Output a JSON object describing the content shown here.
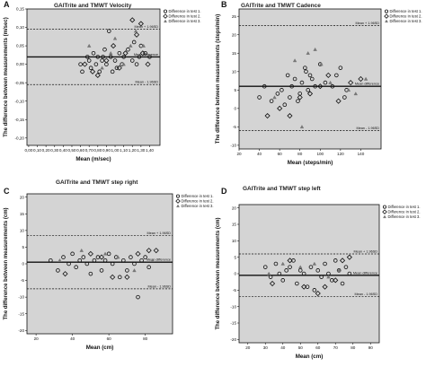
{
  "chart_data": [
    {
      "panel": "A",
      "type": "scatter",
      "title": "GAITrite and TMWT Velocity",
      "xlabel": "Mean (m/sec)",
      "ylabel": "The difference between measurements (m/sec)",
      "xlim": [
        -0.02,
        1.52
      ],
      "ylim": [
        -0.22,
        0.15
      ],
      "xticks": [
        "0,00",
        "0,10",
        "0,20",
        "0,30",
        "0,40",
        "0,50",
        "0,60",
        "0,70",
        "0,80",
        "0,90",
        "1,00",
        "1,10",
        "1,20",
        "1,30",
        "1,40"
      ],
      "xtick_values": [
        0,
        0.1,
        0.2,
        0.3,
        0.4,
        0.5,
        0.6,
        0.7,
        0.8,
        0.9,
        1.0,
        1.1,
        1.2,
        1.3,
        1.4
      ],
      "yticks": [
        "-0,20",
        "-0,15",
        "-0,10",
        "-0,05",
        "0,00",
        "0,05",
        "0,10",
        "0,15"
      ],
      "ytick_values": [
        -0.2,
        -0.15,
        -0.1,
        -0.05,
        0,
        0.05,
        0.1,
        0.15
      ],
      "legend": [
        "Difference in test 1.",
        "Difference in test 2.",
        "Difference in test 3."
      ],
      "legend_placement": "top-right",
      "ref_lines": [
        {
          "y": 0.095,
          "style": "dashed",
          "label": "Mean + 1.96SD"
        },
        {
          "y": 0.02,
          "style": "solid",
          "label": "Mean difference"
        },
        {
          "y": -0.055,
          "style": "dashed",
          "label": "Mean - 1.96SD"
        }
      ],
      "series": [
        {
          "name": "Difference in test 1.",
          "marker": "circle",
          "points": [
            [
              0.6,
              0.0
            ],
            [
              0.62,
              -0.02
            ],
            [
              0.68,
              0.02
            ],
            [
              0.7,
              0.01
            ],
            [
              0.72,
              -0.01
            ],
            [
              0.75,
              0.03
            ],
            [
              0.78,
              0.0
            ],
            [
              0.8,
              0.02
            ],
            [
              0.82,
              -0.02
            ],
            [
              0.85,
              0.01
            ],
            [
              0.88,
              0.04
            ],
            [
              0.9,
              0.0
            ],
            [
              0.93,
              0.09
            ],
            [
              0.95,
              0.02
            ],
            [
              1.0,
              0.01
            ],
            [
              1.02,
              -0.01
            ],
            [
              1.05,
              0.03
            ],
            [
              1.08,
              0.0
            ],
            [
              1.1,
              0.02
            ],
            [
              1.15,
              0.04
            ],
            [
              1.2,
              0.01
            ],
            [
              1.22,
              0.06
            ],
            [
              1.25,
              0.0
            ],
            [
              1.28,
              0.02
            ],
            [
              1.3,
              0.05
            ],
            [
              1.35,
              0.03
            ],
            [
              1.4,
              0.02
            ],
            [
              0.86,
              0.02
            ],
            [
              0.97,
              -0.02
            ]
          ]
        },
        {
          "name": "Difference in test 2.",
          "marker": "diamond",
          "points": [
            [
              0.65,
              0.0
            ],
            [
              0.74,
              -0.02
            ],
            [
              0.8,
              -0.03
            ],
            [
              0.9,
              0.01
            ],
            [
              0.98,
              0.05
            ],
            [
              1.05,
              -0.01
            ],
            [
              1.12,
              0.03
            ],
            [
              1.2,
              0.12
            ],
            [
              1.25,
              0.08
            ],
            [
              1.3,
              0.11
            ],
            [
              1.38,
              0.0
            ],
            [
              1.32,
              0.03
            ]
          ]
        },
        {
          "name": "Difference in test 3.",
          "marker": "triangle",
          "points": [
            [
              0.7,
              0.05
            ],
            [
              0.85,
              -0.01
            ],
            [
              0.95,
              0.03
            ],
            [
              1.0,
              0.07
            ],
            [
              1.1,
              0.0
            ],
            [
              1.18,
              0.05
            ],
            [
              1.24,
              0.09
            ],
            [
              1.33,
              0.05
            ]
          ]
        }
      ]
    },
    {
      "panel": "B",
      "type": "scatter",
      "title": "GAITrite and TMWT Cadence",
      "xlabel": "Mean (steps/min)",
      "ylabel": "The difference between measurements (steps/min)",
      "xlim": [
        20,
        160
      ],
      "ylim": [
        -11,
        27
      ],
      "xticks": [
        "20",
        "40",
        "60",
        "80",
        "100",
        "120",
        "140"
      ],
      "xtick_values": [
        20,
        40,
        60,
        80,
        100,
        120,
        140
      ],
      "yticks": [
        "-10",
        "-5",
        "0",
        "5",
        "10",
        "15",
        "20",
        "25"
      ],
      "ytick_values": [
        -10,
        -5,
        0,
        5,
        10,
        15,
        20,
        25
      ],
      "legend": [
        "Difference in test 1.",
        "Difference in test 2.",
        "Difference in test 3."
      ],
      "legend_placement": "top-right",
      "ref_lines": [
        {
          "y": 22.5,
          "style": "dashed",
          "label": "Mean + 1.96SD"
        },
        {
          "y": 6,
          "style": "solid",
          "label": "Mean difference"
        },
        {
          "y": -6,
          "style": "dashed",
          "label": "Mean - 1.96SD"
        }
      ],
      "series": [
        {
          "name": "Difference in test 1.",
          "marker": "circle",
          "points": [
            [
              40,
              3
            ],
            [
              45,
              6
            ],
            [
              52,
              2
            ],
            [
              58,
              4
            ],
            [
              62,
              5
            ],
            [
              65,
              1
            ],
            [
              68,
              9
            ],
            [
              70,
              3
            ],
            [
              72,
              6
            ],
            [
              75,
              8
            ],
            [
              78,
              2
            ],
            [
              80,
              4
            ],
            [
              82,
              7
            ],
            [
              85,
              11
            ],
            [
              86,
              10
            ],
            [
              88,
              5
            ],
            [
              90,
              9
            ],
            [
              92,
              8
            ],
            [
              95,
              6
            ],
            [
              100,
              12
            ],
            [
              105,
              7
            ],
            [
              112,
              6
            ],
            [
              116,
              9
            ],
            [
              120,
              11
            ],
            [
              124,
              3
            ],
            [
              126,
              5
            ]
          ]
        },
        {
          "name": "Difference in test 2.",
          "marker": "diamond",
          "points": [
            [
              48,
              -2
            ],
            [
              60,
              0
            ],
            [
              70,
              -2
            ],
            [
              80,
              3
            ],
            [
              90,
              4
            ],
            [
              100,
              6
            ],
            [
              108,
              9
            ],
            [
              118,
              2
            ],
            [
              130,
              7
            ],
            [
              140,
              8
            ]
          ]
        },
        {
          "name": "Difference in test 3.",
          "marker": "triangle",
          "points": [
            [
              55,
              3
            ],
            [
              75,
              13
            ],
            [
              82,
              -5
            ],
            [
              88,
              15
            ],
            [
              95,
              16
            ],
            [
              101,
              12
            ],
            [
              110,
              7
            ],
            [
              128,
              5
            ],
            [
              135,
              4
            ],
            [
              145,
              8
            ]
          ]
        }
      ]
    },
    {
      "panel": "C",
      "type": "scatter",
      "title": "GAITrite and TMWT step right",
      "xlabel": "Mean (cm)",
      "ylabel": "The difference between measurements (cm)",
      "xlim": [
        15,
        95
      ],
      "ylim": [
        -21,
        21
      ],
      "xticks": [
        "20",
        "40",
        "60",
        "80"
      ],
      "xtick_values": [
        20,
        40,
        60,
        80
      ],
      "yticks": [
        "-20",
        "-15",
        "-10",
        "-5",
        "0",
        "5",
        "10",
        "15",
        "20"
      ],
      "ytick_values": [
        -20,
        -15,
        -10,
        -5,
        0,
        5,
        10,
        15,
        20
      ],
      "legend": [
        "Difference in test 1.",
        "Difference in test 2.",
        "Difference in test 3."
      ],
      "legend_placement": "top-right",
      "ref_lines": [
        {
          "y": 8.5,
          "style": "dashed",
          "label": "Mean + 1.96SD"
        },
        {
          "y": 0.5,
          "style": "solid",
          "label": "Mean difference"
        },
        {
          "y": -7.5,
          "style": "dashed",
          "label": "Mean - 1.96SD"
        }
      ],
      "series": [
        {
          "name": "Difference in test 1.",
          "marker": "circle",
          "points": [
            [
              28,
              1
            ],
            [
              32,
              -2
            ],
            [
              35,
              2
            ],
            [
              38,
              0
            ],
            [
              40,
              3
            ],
            [
              42,
              -1
            ],
            [
              44,
              1
            ],
            [
              46,
              2
            ],
            [
              48,
              0
            ],
            [
              50,
              -3
            ],
            [
              52,
              1
            ],
            [
              54,
              2
            ],
            [
              56,
              -2
            ],
            [
              58,
              1
            ],
            [
              60,
              3
            ],
            [
              62,
              0
            ],
            [
              64,
              2
            ],
            [
              66,
              -4
            ],
            [
              68,
              1
            ],
            [
              70,
              -2
            ],
            [
              72,
              2
            ],
            [
              74,
              0
            ],
            [
              76,
              -10
            ],
            [
              78,
              1
            ],
            [
              80,
              2
            ],
            [
              82,
              -1
            ]
          ]
        },
        {
          "name": "Difference in test 2.",
          "marker": "diamond",
          "points": [
            [
              36,
              -3
            ],
            [
              50,
              3
            ],
            [
              56,
              2
            ],
            [
              62,
              -4
            ],
            [
              70,
              -4
            ],
            [
              76,
              3
            ],
            [
              82,
              4
            ],
            [
              86,
              4
            ]
          ]
        },
        {
          "name": "Difference in test 3.",
          "marker": "triangle",
          "points": [
            [
              33,
              1
            ],
            [
              45,
              4
            ],
            [
              58,
              3
            ],
            [
              65,
              2
            ],
            [
              74,
              -2
            ],
            [
              84,
              1
            ]
          ]
        }
      ]
    },
    {
      "panel": "D",
      "type": "scatter",
      "title": "GAITrite and TMWT step left",
      "xlabel": "Mean (cm)",
      "ylabel": "The difference between measurements (cm)",
      "xlim": [
        15,
        95
      ],
      "ylim": [
        -21,
        21
      ],
      "xticks": [
        "20",
        "30",
        "40",
        "50",
        "60",
        "70",
        "80",
        "90"
      ],
      "xtick_values": [
        20,
        30,
        40,
        50,
        60,
        70,
        80,
        90
      ],
      "yticks": [
        "-20",
        "-15",
        "-10",
        "-5",
        "0",
        "5",
        "10",
        "15",
        "20"
      ],
      "ytick_values": [
        -20,
        -15,
        -10,
        -5,
        0,
        5,
        10,
        15,
        20
      ],
      "legend": [
        "Difference in test 1.",
        "Difference in test 2.",
        "Difference in test 3."
      ],
      "legend_placement": "top-right",
      "ref_lines": [
        {
          "y": 6,
          "style": "dashed",
          "label": "Mean + 1.96SD"
        },
        {
          "y": -0.5,
          "style": "solid",
          "label": "Mean difference"
        },
        {
          "y": -7,
          "style": "dashed",
          "label": "Mean - 1.96SD"
        }
      ],
      "series": [
        {
          "name": "Difference in test 1.",
          "marker": "circle",
          "points": [
            [
              30,
              2
            ],
            [
              33,
              -1
            ],
            [
              36,
              3
            ],
            [
              38,
              0
            ],
            [
              40,
              -2
            ],
            [
              42,
              1
            ],
            [
              44,
              2
            ],
            [
              46,
              4
            ],
            [
              48,
              -3
            ],
            [
              50,
              1
            ],
            [
              52,
              0
            ],
            [
              54,
              -4
            ],
            [
              56,
              2
            ],
            [
              58,
              -5
            ],
            [
              60,
              1
            ],
            [
              62,
              -1
            ],
            [
              64,
              3
            ],
            [
              66,
              0
            ],
            [
              68,
              -2
            ],
            [
              70,
              4
            ],
            [
              72,
              1
            ],
            [
              74,
              -3
            ],
            [
              76,
              2
            ],
            [
              78,
              0
            ]
          ]
        },
        {
          "name": "Difference in test 2.",
          "marker": "diamond",
          "points": [
            [
              34,
              -3
            ],
            [
              44,
              4
            ],
            [
              52,
              -4
            ],
            [
              60,
              -6
            ],
            [
              64,
              -4
            ],
            [
              70,
              -2
            ],
            [
              74,
              4
            ],
            [
              78,
              5
            ]
          ]
        },
        {
          "name": "Difference in test 3.",
          "marker": "triangle",
          "points": [
            [
              32,
              0
            ],
            [
              40,
              3
            ],
            [
              50,
              2
            ],
            [
              58,
              3
            ],
            [
              66,
              -1
            ],
            [
              72,
              1
            ]
          ]
        }
      ]
    }
  ]
}
